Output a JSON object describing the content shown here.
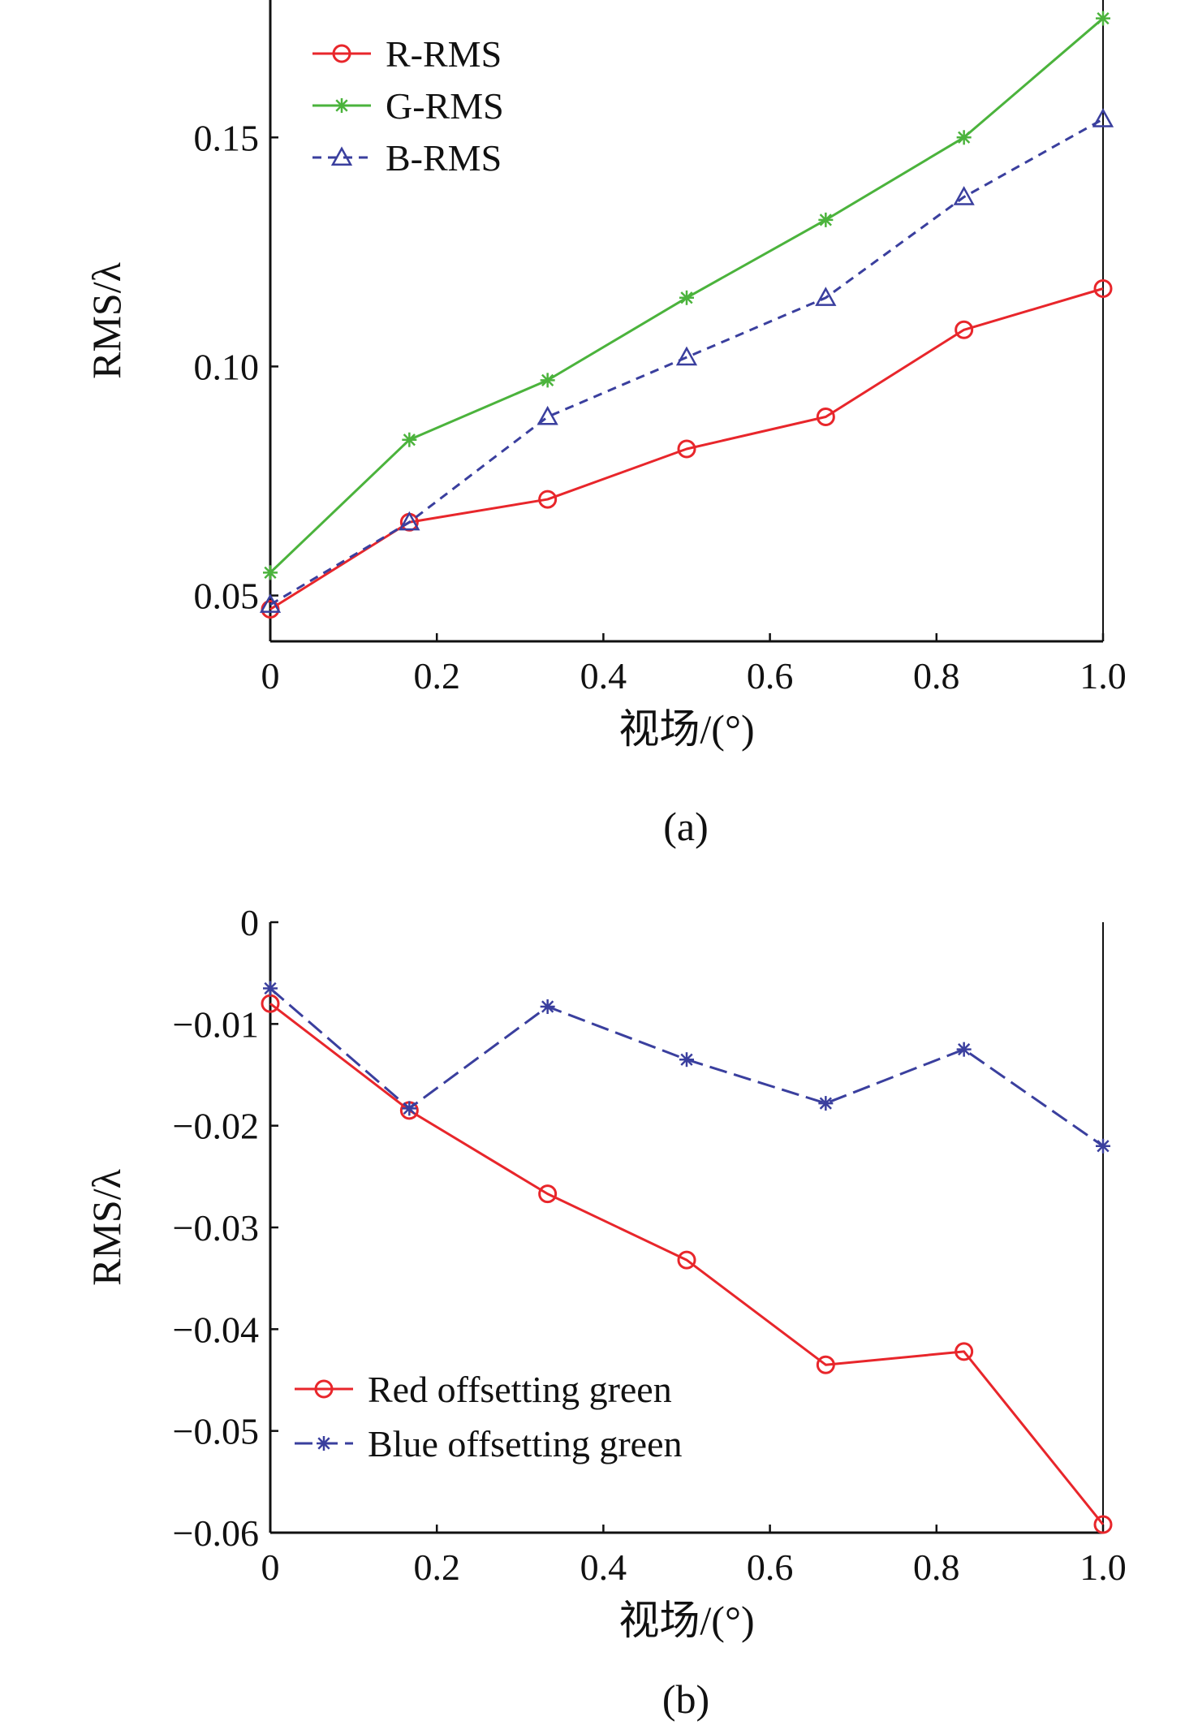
{
  "figure": {
    "captions": [
      "(a)",
      "(b)"
    ]
  },
  "chart_data": [
    {
      "type": "line",
      "title": "",
      "xlabel": "视场/(°)",
      "ylabel": "RMS/λ",
      "xlim": [
        0,
        1.0
      ],
      "ylim": [
        0.04,
        0.18
      ],
      "xticks": [
        0,
        0.2,
        0.4,
        0.6,
        0.8,
        1.0
      ],
      "xtick_labels": [
        "0",
        "0.2",
        "0.4",
        "0.6",
        "0.8",
        "1.0"
      ],
      "yticks": [
        0.05,
        0.1,
        0.15
      ],
      "ytick_labels": [
        "0.05",
        "0.10",
        "0.15"
      ],
      "grid": false,
      "legend": "top-left",
      "x": [
        0,
        0.167,
        0.333,
        0.5,
        0.667,
        0.833,
        1.0
      ],
      "series": [
        {
          "name": "R-RMS",
          "color": "#e8262b",
          "marker": "circle",
          "dash": "solid",
          "values": [
            0.047,
            0.066,
            0.071,
            0.082,
            0.089,
            0.108,
            0.117
          ]
        },
        {
          "name": "G-RMS",
          "color": "#4bb33c",
          "marker": "star",
          "dash": "solid",
          "values": [
            0.055,
            0.084,
            0.097,
            0.115,
            0.132,
            0.15,
            0.176
          ]
        },
        {
          "name": "B-RMS",
          "color": "#3a3f9e",
          "marker": "triangle",
          "dash": "dashed",
          "values": [
            0.048,
            0.066,
            0.089,
            0.102,
            0.115,
            0.137,
            0.154
          ]
        }
      ]
    },
    {
      "type": "line",
      "title": "",
      "xlabel": "视场/(°)",
      "ylabel": "RMS/λ",
      "xlim": [
        0,
        1.0
      ],
      "ylim": [
        -0.06,
        0
      ],
      "xticks": [
        0,
        0.2,
        0.4,
        0.6,
        0.8,
        1.0
      ],
      "xtick_labels": [
        "0",
        "0.2",
        "0.4",
        "0.6",
        "0.8",
        "1.0"
      ],
      "yticks": [
        0,
        -0.01,
        -0.02,
        -0.03,
        -0.04,
        -0.05,
        -0.06
      ],
      "ytick_labels": [
        "0",
        "−0.01",
        "−0.02",
        "−0.03",
        "−0.04",
        "−0.05",
        "−0.06"
      ],
      "grid": false,
      "legend": "bottom-left",
      "x": [
        0,
        0.167,
        0.333,
        0.5,
        0.667,
        0.833,
        1.0
      ],
      "series": [
        {
          "name": "Red offsetting green",
          "color": "#e8262b",
          "marker": "circle",
          "dash": "solid",
          "values": [
            -0.008,
            -0.0185,
            -0.0267,
            -0.0332,
            -0.0435,
            -0.0422,
            -0.0592
          ]
        },
        {
          "name": "Blue offsetting green",
          "color": "#3a3f9e",
          "marker": "star",
          "dash": "longdash",
          "values": [
            -0.0065,
            -0.0183,
            -0.0083,
            -0.0135,
            -0.0178,
            -0.0125,
            -0.022
          ]
        }
      ]
    }
  ]
}
